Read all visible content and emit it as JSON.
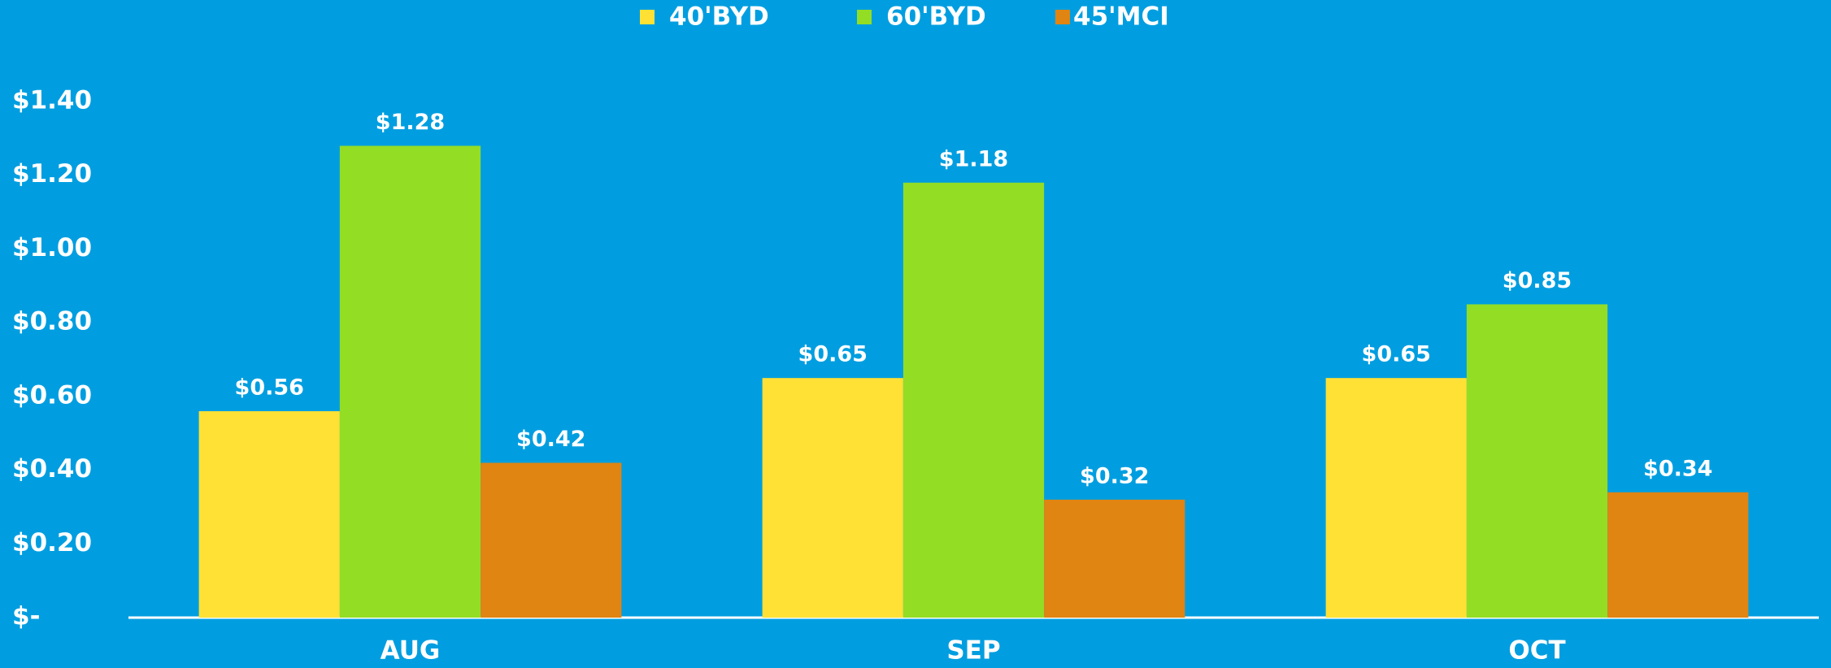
{
  "chart_data": {
    "type": "bar",
    "categories": [
      "AUG",
      "SEP",
      "OCT"
    ],
    "series": [
      {
        "name": "40'BYD",
        "color": "#ffe135",
        "values": [
          0.56,
          0.65,
          0.65
        ],
        "value_labels": [
          "$0.56",
          "$0.65",
          "$0.65"
        ]
      },
      {
        "name": "60'BYD",
        "color": "#93dd25",
        "values": [
          1.28,
          1.18,
          0.85
        ],
        "value_labels": [
          "$1.28",
          "$1.18",
          "$0.85"
        ]
      },
      {
        "name": "45'MCI",
        "color": "#e08412",
        "values": [
          0.42,
          0.32,
          0.34
        ],
        "value_labels": [
          "$0.42",
          "$0.32",
          "$0.34"
        ]
      }
    ],
    "ylim": [
      0,
      1.4
    ],
    "yticks": [
      {
        "value": 0,
        "label": "$-"
      },
      {
        "value": 0.2,
        "label": "$0.20"
      },
      {
        "value": 0.4,
        "label": "$0.40"
      },
      {
        "value": 0.6,
        "label": "$0.60"
      },
      {
        "value": 0.8,
        "label": "$0.80"
      },
      {
        "value": 1.0,
        "label": "$1.00"
      },
      {
        "value": 1.2,
        "label": "$1.20"
      },
      {
        "value": 1.4,
        "label": "$1.40"
      }
    ],
    "grid": false,
    "legend": "top"
  }
}
